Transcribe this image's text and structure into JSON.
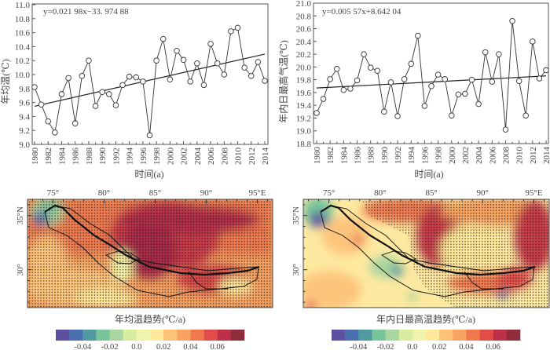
{
  "chart_data": [
    {
      "id": "annual-mean-temp",
      "type": "line",
      "title": "",
      "xlabel": "时间(a)",
      "ylabel": "年均温(℃)",
      "equation": "y=0.021 98x−33. 974 88",
      "regression": {
        "slope": 0.02198,
        "intercept": -33.97488
      },
      "ylim": [
        9.0,
        11.0
      ],
      "yticks": [
        "9.0",
        "9.2",
        "9.4",
        "9.6",
        "9.8",
        "10.0",
        "10.2",
        "10.4",
        "10.6",
        "10.8",
        "11.0"
      ],
      "xlim": [
        1980,
        2014
      ],
      "xticks": [
        "1980",
        "1982",
        "1984",
        "1986",
        "1988",
        "1990",
        "1992",
        "1994",
        "1996",
        "1998",
        "2000",
        "2002",
        "2004",
        "2006",
        "2008",
        "2010",
        "2012",
        "2014"
      ],
      "x": [
        1980,
        1981,
        1982,
        1983,
        1984,
        1985,
        1986,
        1987,
        1988,
        1989,
        1990,
        1991,
        1992,
        1993,
        1994,
        1995,
        1996,
        1997,
        1998,
        1999,
        2000,
        2001,
        2002,
        2003,
        2004,
        2005,
        2006,
        2007,
        2008,
        2009,
        2010,
        2011,
        2012,
        2013,
        2014
      ],
      "series": [
        {
          "name": "年均温",
          "values": [
            9.82,
            9.57,
            9.33,
            9.17,
            9.72,
            9.95,
            9.3,
            9.98,
            10.2,
            9.55,
            9.75,
            9.72,
            9.56,
            9.85,
            9.97,
            9.96,
            9.9,
            9.13,
            10.2,
            10.51,
            9.93,
            10.34,
            10.21,
            9.9,
            10.16,
            9.85,
            10.44,
            10.16,
            10.0,
            10.62,
            10.67,
            10.1,
            9.98,
            10.18,
            9.91
          ]
        }
      ]
    },
    {
      "id": "annual-max-daily-temp",
      "type": "line",
      "title": "",
      "xlabel": "时间(a)",
      "ylabel": "年内日最高气温(℃)",
      "equation": "y=0.005 57x+8.642 04",
      "regression": {
        "slope": 0.00557,
        "intercept": 8.64204
      },
      "ylim": [
        18.8,
        21.0
      ],
      "yticks": [
        "18.8",
        "19.0",
        "19.2",
        "19.4",
        "19.6",
        "19.8",
        "20.0",
        "20.2",
        "20.4",
        "20.6",
        "20.8",
        "21.0"
      ],
      "xlim": [
        1980,
        2014
      ],
      "xticks": [
        "1980",
        "1982",
        "1984",
        "1986",
        "1988",
        "1990",
        "1992",
        "1994",
        "1996",
        "1998",
        "2000",
        "2002",
        "2004",
        "2006",
        "2008",
        "2010",
        "2012",
        "2014"
      ],
      "x": [
        1980,
        1981,
        1982,
        1983,
        1984,
        1985,
        1986,
        1987,
        1988,
        1989,
        1990,
        1991,
        1992,
        1993,
        1994,
        1995,
        1996,
        1997,
        1998,
        1999,
        2000,
        2001,
        2002,
        2003,
        2004,
        2005,
        2006,
        2007,
        2008,
        2009,
        2010,
        2011,
        2012,
        2013,
        2014
      ],
      "series": [
        {
          "name": "年内日最高气温",
          "values": [
            19.28,
            19.5,
            19.81,
            19.97,
            19.64,
            19.66,
            19.79,
            20.2,
            19.99,
            19.94,
            19.3,
            19.76,
            19.23,
            19.81,
            20.05,
            20.49,
            19.39,
            19.7,
            19.88,
            19.81,
            19.24,
            19.57,
            19.58,
            19.8,
            19.42,
            20.23,
            19.77,
            20.2,
            19.02,
            20.72,
            19.78,
            19.24,
            20.4,
            19.82,
            19.95
          ]
        }
      ]
    },
    {
      "id": "map-annual-mean-trend",
      "type": "heatmap",
      "title": "年均温趋势(℃/a)",
      "lon_ticks": [
        "75°",
        "80°",
        "85°",
        "90°",
        "95°E"
      ],
      "lat_ticks": [
        "35°N",
        "30°"
      ],
      "lon_range": [
        72.5,
        96.5
      ],
      "lat_range": [
        26.5,
        36.5
      ],
      "stippling": "significant grid cells marked with dots (most of domain)"
    },
    {
      "id": "map-annual-max-trend",
      "type": "heatmap",
      "title": "年内日最高温趋势(℃/a)",
      "lon_ticks": [
        "75°",
        "80°",
        "85°",
        "90°",
        "95°E"
      ],
      "lat_ticks": [
        "35°N",
        "30°"
      ],
      "lon_range": [
        72.5,
        96.5
      ],
      "lat_range": [
        26.5,
        36.5
      ],
      "stippling": "significant grid cells marked with dots (northeast and central-east regions)"
    }
  ],
  "colorbar": {
    "colors": [
      "#5e4fa2",
      "#4a6faf",
      "#4f9aa0",
      "#78c49b",
      "#a8d69e",
      "#d7ec9f",
      "#f0f3ab",
      "#fee99a",
      "#fdc277",
      "#f8a35f",
      "#f1784d",
      "#e24c48",
      "#be2f48",
      "#8f2d3c"
    ],
    "tick_labels": [
      "-0.04",
      "-0.02",
      "0.0",
      "0.02",
      "0.04",
      "0.06"
    ]
  }
}
